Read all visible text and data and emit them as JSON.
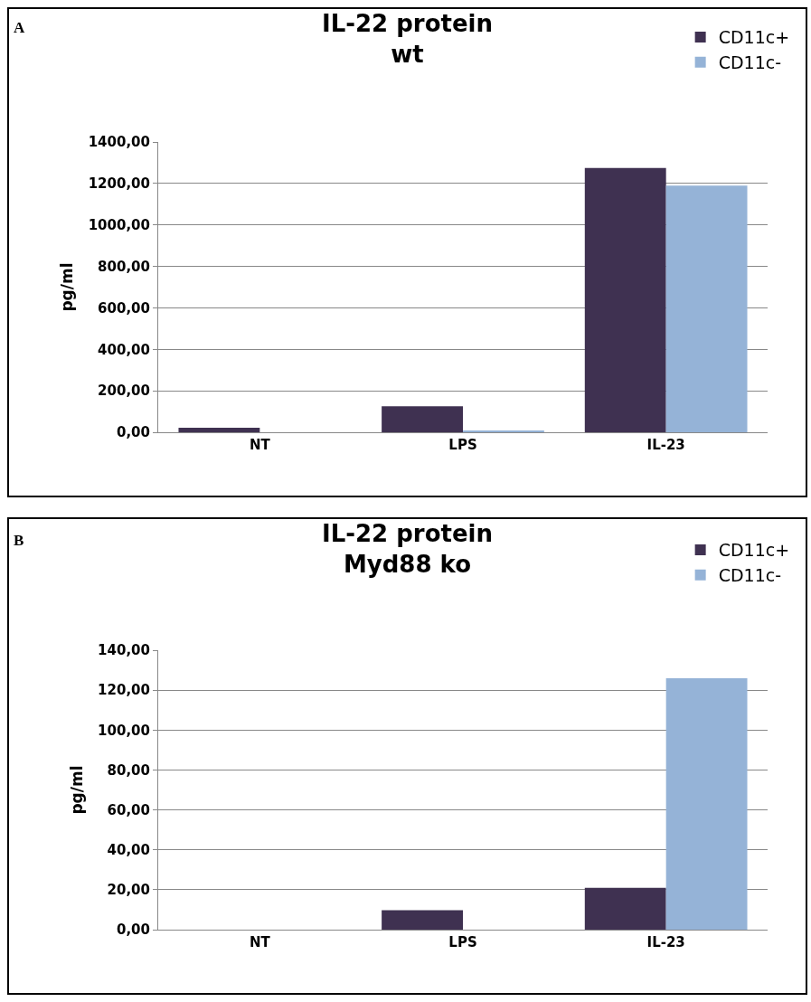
{
  "chart_data": [
    {
      "type": "bar",
      "title": "IL-22 protein",
      "subtitle": "wt",
      "ylabel": "pg/ml",
      "annotations": [
        "A"
      ],
      "categories": [
        "NT",
        "LPS",
        "IL-23"
      ],
      "series": [
        {
          "name": "CD11c+",
          "color": "#3f3151",
          "values": [
            22,
            125,
            1275
          ]
        },
        {
          "name": "CD11c-",
          "color": "#95b3d7",
          "values": [
            0,
            6,
            1190
          ]
        }
      ],
      "ylim": [
        0,
        1400
      ],
      "yticks": [
        {
          "value": 0,
          "label": "0,00"
        },
        {
          "value": 200,
          "label": "200,00"
        },
        {
          "value": 400,
          "label": "400,00"
        },
        {
          "value": 600,
          "label": "600,00"
        },
        {
          "value": 800,
          "label": "800,00"
        },
        {
          "value": 1000,
          "label": "1000,00"
        },
        {
          "value": 1200,
          "label": "1200,00"
        },
        {
          "value": 1400,
          "label": "1400,00"
        }
      ],
      "grid": "y",
      "legend": "top right"
    },
    {
      "type": "bar",
      "title": "IL-22 protein",
      "subtitle": "Myd88 ko",
      "ylabel": "pg/ml",
      "annotations": [
        "B"
      ],
      "categories": [
        "NT",
        "LPS",
        "IL-23"
      ],
      "series": [
        {
          "name": "CD11c+",
          "color": "#3f3151",
          "values": [
            0,
            9.7,
            21
          ]
        },
        {
          "name": "CD11c-",
          "color": "#95b3d7",
          "values": [
            0,
            0,
            126
          ]
        }
      ],
      "ylim": [
        0,
        140
      ],
      "yticks": [
        {
          "value": 0,
          "label": "0,00"
        },
        {
          "value": 20,
          "label": "20,00"
        },
        {
          "value": 40,
          "label": "40,00"
        },
        {
          "value": 60,
          "label": "60,00"
        },
        {
          "value": 80,
          "label": "80,00"
        },
        {
          "value": 100,
          "label": "100,00"
        },
        {
          "value": 120,
          "label": "120,00"
        },
        {
          "value": 140,
          "label": "140,00"
        }
      ],
      "grid": "y",
      "legend": "top right"
    }
  ]
}
